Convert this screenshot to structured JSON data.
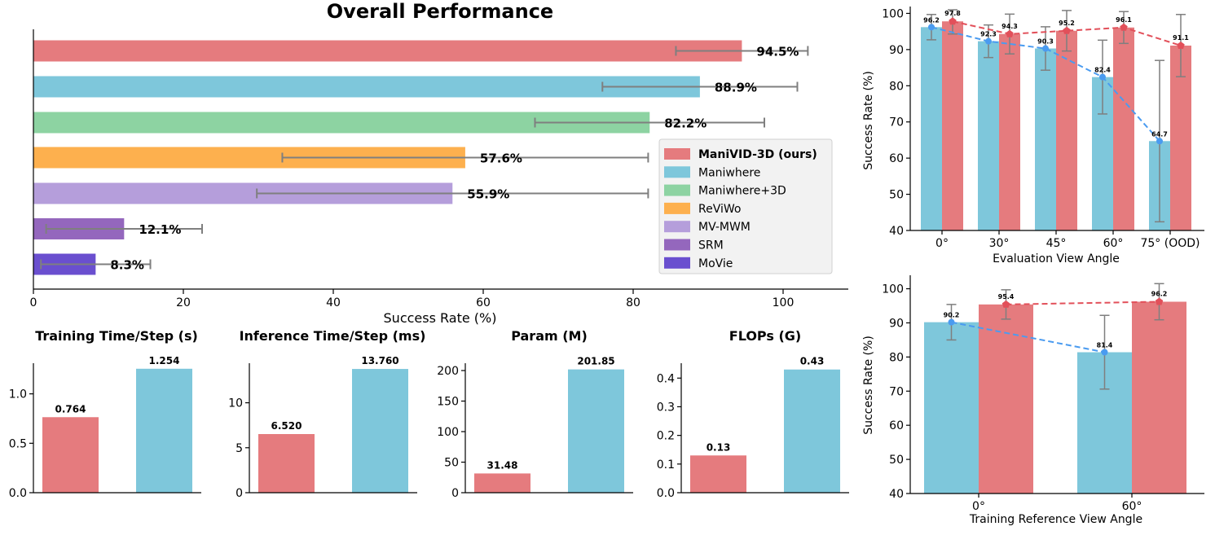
{
  "colors": {
    "red": "#E57B7E",
    "blue": "#7EC7DB",
    "green": "#8DD3A2",
    "orange": "#FDB04E",
    "lavender": "#B59EDB",
    "purple": "#9467BD",
    "indigo": "#6A4FCF",
    "error": "#7F7F7F",
    "red_line": "#E2505A",
    "blue_line": "#4A9BF0"
  },
  "chart_data": [
    {
      "id": "overall",
      "type": "bar",
      "orientation": "horizontal",
      "title": "Overall Performance",
      "xlabel": "Success Rate (%)",
      "xlim": [
        0,
        109
      ],
      "xticks": [
        "0",
        "20",
        "40",
        "60",
        "80",
        "100"
      ],
      "categories": [
        "ManiVID-3D (ours)",
        "Maniwhere",
        "Maniwhere+3D",
        "ReViWo",
        "MV-MWM",
        "SRM",
        "MoVie"
      ],
      "values": [
        94.5,
        88.9,
        82.2,
        57.6,
        55.9,
        12.1,
        8.3
      ],
      "errors": [
        8.8,
        13.0,
        15.3,
        24.4,
        26.1,
        10.4,
        7.3
      ],
      "labels": [
        "94.5%",
        "88.9%",
        "82.2%",
        "57.6%",
        "55.9%",
        "12.1%",
        "8.3%"
      ],
      "legend": [
        "ManiVID-3D (ours)",
        "Maniwhere",
        "Maniwhere+3D",
        "ReViWo",
        "MV-MWM",
        "SRM",
        "MoVie"
      ],
      "legend_position": "right"
    },
    {
      "id": "train_time",
      "type": "bar",
      "title": "Training Time/Step (s)",
      "values": [
        0.764,
        1.254
      ],
      "labels": [
        "0.764",
        "1.254"
      ],
      "ylim": [
        0,
        1.31
      ],
      "yticks": [
        0,
        0.5,
        1.0
      ],
      "ytick_labels": [
        "0.0",
        "0.5",
        "1.0"
      ]
    },
    {
      "id": "infer_time",
      "type": "bar",
      "title": "Inference Time/Step (ms)",
      "values": [
        6.52,
        13.76
      ],
      "labels": [
        "6.520",
        "13.760"
      ],
      "ylim": [
        0,
        14.4
      ],
      "yticks": [
        0,
        5,
        10
      ],
      "ytick_labels": [
        "0",
        "5",
        "10"
      ]
    },
    {
      "id": "param",
      "type": "bar",
      "title": "Param (M)",
      "values": [
        31.48,
        201.85
      ],
      "labels": [
        "31.48",
        "201.85"
      ],
      "ylim": [
        0,
        212
      ],
      "yticks": [
        0,
        50,
        100,
        150,
        200
      ],
      "ytick_labels": [
        "0",
        "50",
        "100",
        "150",
        "200"
      ]
    },
    {
      "id": "flops",
      "type": "bar",
      "title": "FLOPs (G)",
      "values": [
        0.13,
        0.43
      ],
      "labels": [
        "0.13",
        "0.43"
      ],
      "ylim": [
        0,
        0.452
      ],
      "yticks": [
        0,
        0.1,
        0.2,
        0.3,
        0.4
      ],
      "ytick_labels": [
        "0.0",
        "0.1",
        "0.2",
        "0.3",
        "0.4"
      ]
    },
    {
      "id": "eval_angle",
      "type": "bar+line",
      "xlabel": "Evaluation View Angle",
      "ylabel": "Success Rate (%)",
      "ylim": [
        40,
        101
      ],
      "yticks": [
        40,
        50,
        60,
        70,
        80,
        90,
        100
      ],
      "categories": [
        "0°",
        "30°",
        "45°",
        "60°",
        "75° (OOD)"
      ],
      "series": [
        {
          "name": "Maniwhere",
          "values": [
            96.2,
            92.3,
            90.3,
            82.4,
            64.7
          ],
          "errors": [
            3.5,
            4.5,
            6.0,
            10.2,
            22.3
          ],
          "labels": [
            "96.2",
            "92.3",
            "90.3",
            "82.4",
            "64.7"
          ]
        },
        {
          "name": "ManiVID-3D (ours)",
          "values": [
            97.8,
            94.3,
            95.2,
            96.1,
            91.1
          ],
          "errors": [
            3.5,
            5.5,
            5.6,
            4.4,
            8.6
          ],
          "labels": [
            "97.8",
            "94.3",
            "95.2",
            "96.1",
            "91.1"
          ]
        }
      ]
    },
    {
      "id": "train_ref",
      "type": "bar+line",
      "xlabel": "Training Reference View Angle",
      "ylabel": "Success Rate (%)",
      "ylim": [
        40,
        103
      ],
      "yticks": [
        40,
        50,
        60,
        70,
        80,
        90,
        100
      ],
      "categories": [
        "0°",
        "60°"
      ],
      "series": [
        {
          "name": "Maniwhere",
          "values": [
            90.2,
            81.4
          ],
          "errors": [
            5.2,
            10.8
          ],
          "labels": [
            "90.2",
            "81.4"
          ]
        },
        {
          "name": "ManiVID-3D (ours)",
          "values": [
            95.4,
            96.2
          ],
          "errors": [
            4.3,
            5.3
          ],
          "labels": [
            "95.4",
            "96.2"
          ]
        }
      ]
    }
  ]
}
